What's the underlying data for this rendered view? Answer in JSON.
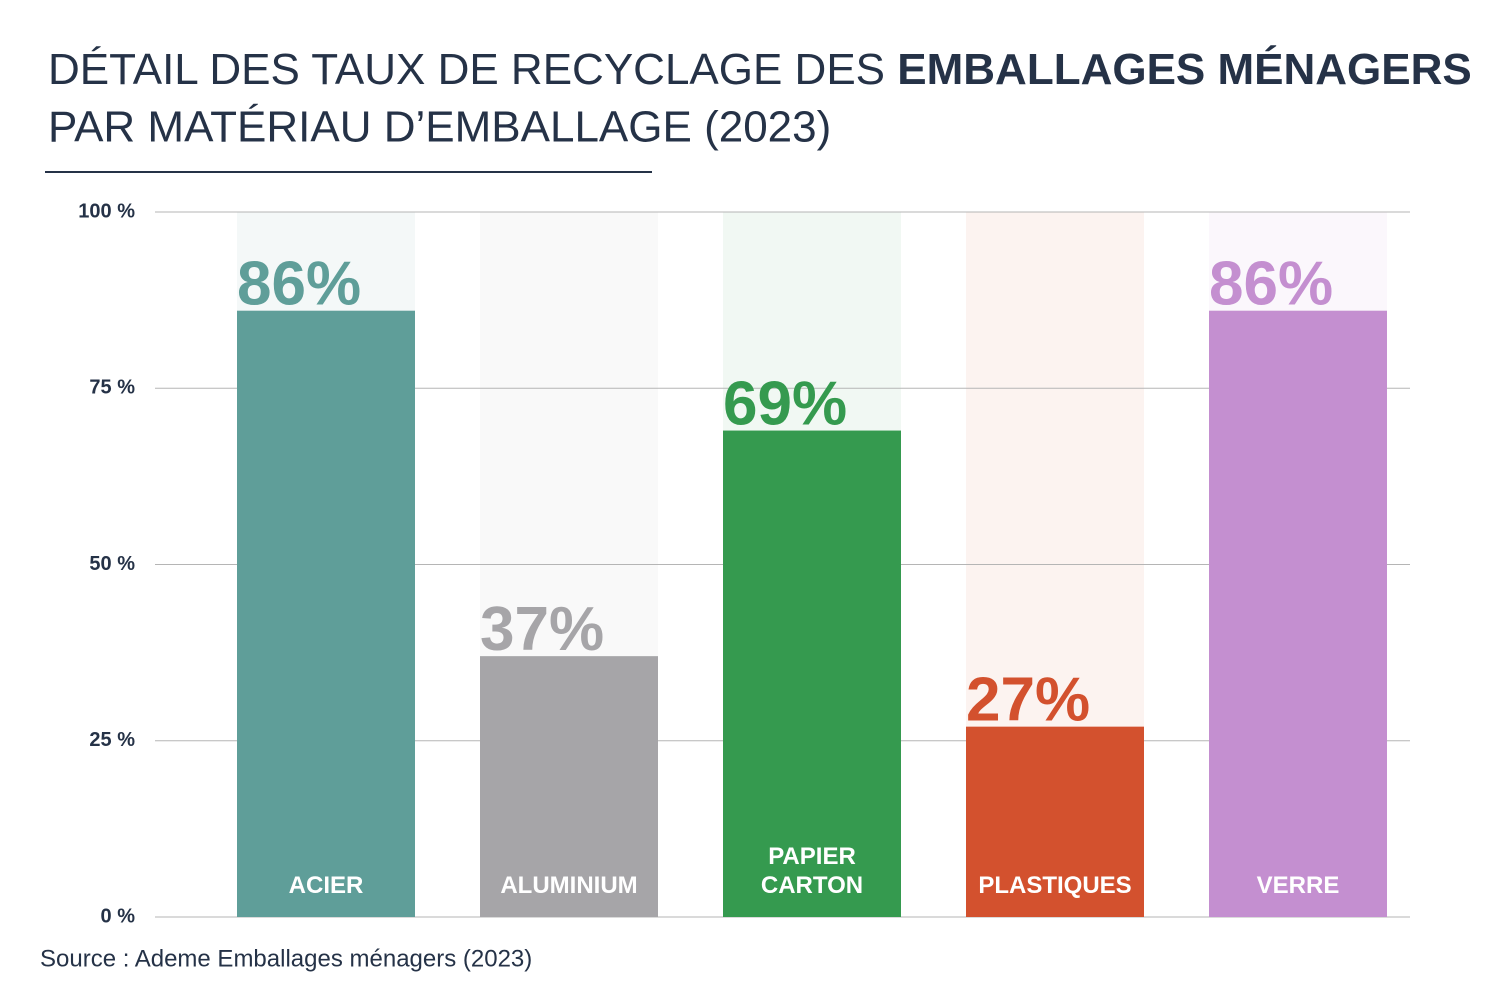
{
  "chart_data": {
    "type": "bar",
    "title": [
      "DÉTAIL DES TAUX DE RECYCLAGE DES ",
      "EMBALLAGES MÉNAGERS",
      "PAR MATÉRIAU D’EMBALLAGE (2023)"
    ],
    "source": "Source : Ademe Emballages ménagers (2023)",
    "categories": [
      "ACIER",
      "ALUMINIUM",
      "PAPIER CARTON",
      "PLASTIQUES",
      "VERRE"
    ],
    "values": [
      86,
      37,
      69,
      27,
      86
    ],
    "value_labels": [
      "86%",
      "37%",
      "69%",
      "27%",
      "86%"
    ],
    "colors": [
      "#5f9e99",
      "#a6a5a8",
      "#359a4f",
      "#d3512e",
      "#c48fd0"
    ],
    "ylim": [
      0,
      100
    ],
    "yticks": [
      {
        "value": 0,
        "label": "0 %"
      },
      {
        "value": 25,
        "label": "25 %"
      },
      {
        "value": 50,
        "label": "50 %"
      },
      {
        "value": 75,
        "label": "75 %"
      },
      {
        "value": 100,
        "label": "100 %"
      }
    ],
    "grid": true
  }
}
